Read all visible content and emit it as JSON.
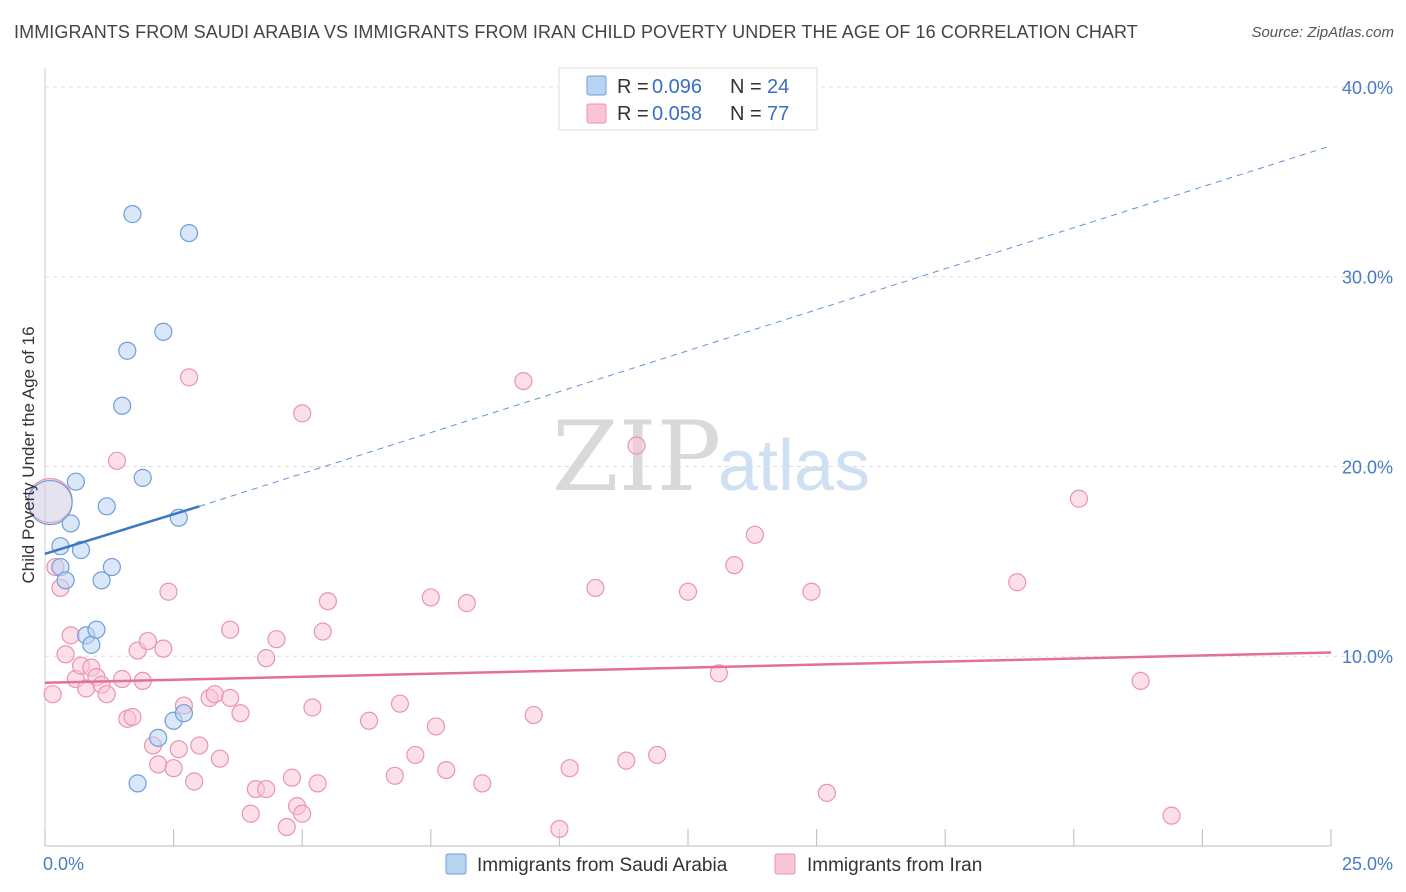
{
  "header": {
    "title": "IMMIGRANTS FROM SAUDI ARABIA VS IMMIGRANTS FROM IRAN CHILD POVERTY UNDER THE AGE OF 16 CORRELATION CHART",
    "source": "Source: ZipAtlas.com"
  },
  "watermark": {
    "zip": "ZIP",
    "atlas": "atlas"
  },
  "legend": {
    "r_label": "R =",
    "n_label": "N =",
    "rows": [
      {
        "r": "0.096",
        "n": "24"
      },
      {
        "r": "0.058",
        "n": "77"
      }
    ]
  },
  "colors": {
    "saudi_fill": "#b9d3f2",
    "saudi_stroke": "#6f9fd8",
    "saudi_line": "#3a78c9",
    "iran_fill": "#f9c5d6",
    "iran_stroke": "#e895b2",
    "iran_line": "#e46f9a",
    "grid": "#dddddd",
    "tick_text": "#4a7bc4"
  },
  "chart_data": {
    "type": "scatter",
    "ylabel": "Child Poverty Under the Age of 16",
    "xlabel": "",
    "xlim": [
      0,
      25
    ],
    "ylim": [
      0,
      41
    ],
    "x_tick_labels": [
      "0.0%",
      "25.0%"
    ],
    "y_ticks": [
      10,
      20,
      30,
      40
    ],
    "y_tick_labels": [
      "10.0%",
      "20.0%",
      "30.0%",
      "40.0%"
    ],
    "grid": true,
    "legend_position": "top-center",
    "series": [
      {
        "name": "Immigrants from Saudi Arabia",
        "r": 0.096,
        "n": 24,
        "points": [
          [
            0.1,
            18.1
          ],
          [
            0.3,
            14.7
          ],
          [
            0.3,
            15.8
          ],
          [
            0.4,
            14.0
          ],
          [
            0.5,
            17.0
          ],
          [
            0.6,
            19.2
          ],
          [
            0.7,
            15.6
          ],
          [
            0.8,
            11.1
          ],
          [
            0.9,
            10.6
          ],
          [
            1.0,
            11.4
          ],
          [
            1.1,
            14.0
          ],
          [
            1.2,
            17.9
          ],
          [
            1.3,
            14.7
          ],
          [
            1.5,
            23.2
          ],
          [
            1.6,
            26.1
          ],
          [
            1.7,
            33.3
          ],
          [
            1.8,
            3.3
          ],
          [
            1.9,
            19.4
          ],
          [
            2.2,
            5.7
          ],
          [
            2.3,
            27.1
          ],
          [
            2.5,
            6.6
          ],
          [
            2.6,
            17.3
          ],
          [
            2.7,
            7.0
          ],
          [
            2.8,
            32.3
          ]
        ],
        "trend": {
          "x": [
            0,
            3.0
          ],
          "y": [
            15.4,
            17.9
          ]
        },
        "trend_extension": {
          "x": [
            3.0,
            25
          ],
          "y": [
            17.9,
            36.9
          ]
        }
      },
      {
        "name": "Immigrants from Iran",
        "r": 0.058,
        "n": 77,
        "points": [
          [
            0.1,
            18.2
          ],
          [
            0.2,
            14.7
          ],
          [
            0.3,
            13.6
          ],
          [
            0.4,
            10.1
          ],
          [
            0.5,
            11.1
          ],
          [
            0.6,
            8.8
          ],
          [
            0.7,
            9.5
          ],
          [
            0.8,
            8.3
          ],
          [
            0.9,
            9.4
          ],
          [
            1.0,
            8.9
          ],
          [
            1.1,
            8.5
          ],
          [
            1.2,
            8.0
          ],
          [
            1.4,
            20.3
          ],
          [
            1.5,
            8.8
          ],
          [
            1.6,
            6.7
          ],
          [
            1.7,
            6.8
          ],
          [
            1.8,
            10.3
          ],
          [
            1.9,
            8.7
          ],
          [
            2.0,
            10.8
          ],
          [
            2.1,
            5.3
          ],
          [
            2.2,
            4.3
          ],
          [
            2.3,
            10.4
          ],
          [
            2.4,
            13.4
          ],
          [
            2.5,
            4.1
          ],
          [
            2.6,
            5.1
          ],
          [
            2.7,
            7.4
          ],
          [
            2.8,
            24.7
          ],
          [
            2.9,
            3.4
          ],
          [
            3.0,
            5.3
          ],
          [
            3.2,
            7.8
          ],
          [
            3.3,
            8.0
          ],
          [
            3.4,
            4.6
          ],
          [
            3.6,
            7.8
          ],
          [
            3.6,
            11.4
          ],
          [
            3.8,
            7.0
          ],
          [
            4.0,
            1.7
          ],
          [
            4.1,
            3.0
          ],
          [
            4.3,
            3.0
          ],
          [
            4.3,
            9.9
          ],
          [
            4.5,
            10.9
          ],
          [
            4.7,
            1.0
          ],
          [
            4.8,
            3.6
          ],
          [
            4.9,
            2.1
          ],
          [
            5.0,
            1.7
          ],
          [
            5.0,
            22.8
          ],
          [
            5.2,
            7.3
          ],
          [
            5.3,
            3.3
          ],
          [
            5.4,
            11.3
          ],
          [
            5.5,
            12.9
          ],
          [
            6.3,
            6.6
          ],
          [
            6.8,
            3.7
          ],
          [
            6.9,
            7.5
          ],
          [
            7.2,
            4.8
          ],
          [
            7.5,
            13.1
          ],
          [
            7.6,
            6.3
          ],
          [
            7.8,
            4.0
          ],
          [
            8.2,
            12.8
          ],
          [
            8.5,
            3.3
          ],
          [
            9.3,
            24.5
          ],
          [
            9.5,
            6.9
          ],
          [
            10.0,
            0.9
          ],
          [
            10.2,
            4.1
          ],
          [
            10.7,
            13.6
          ],
          [
            11.3,
            4.5
          ],
          [
            11.5,
            21.1
          ],
          [
            11.9,
            4.8
          ],
          [
            12.5,
            13.4
          ],
          [
            13.1,
            9.1
          ],
          [
            13.4,
            14.8
          ],
          [
            13.8,
            16.4
          ],
          [
            14.9,
            13.4
          ],
          [
            15.2,
            2.8
          ],
          [
            18.9,
            13.9
          ],
          [
            20.1,
            18.3
          ],
          [
            21.3,
            8.7
          ],
          [
            21.9,
            1.6
          ],
          [
            0.15,
            8.0
          ]
        ],
        "trend": {
          "x": [
            0,
            25
          ],
          "y": [
            8.6,
            10.2
          ]
        }
      }
    ]
  }
}
